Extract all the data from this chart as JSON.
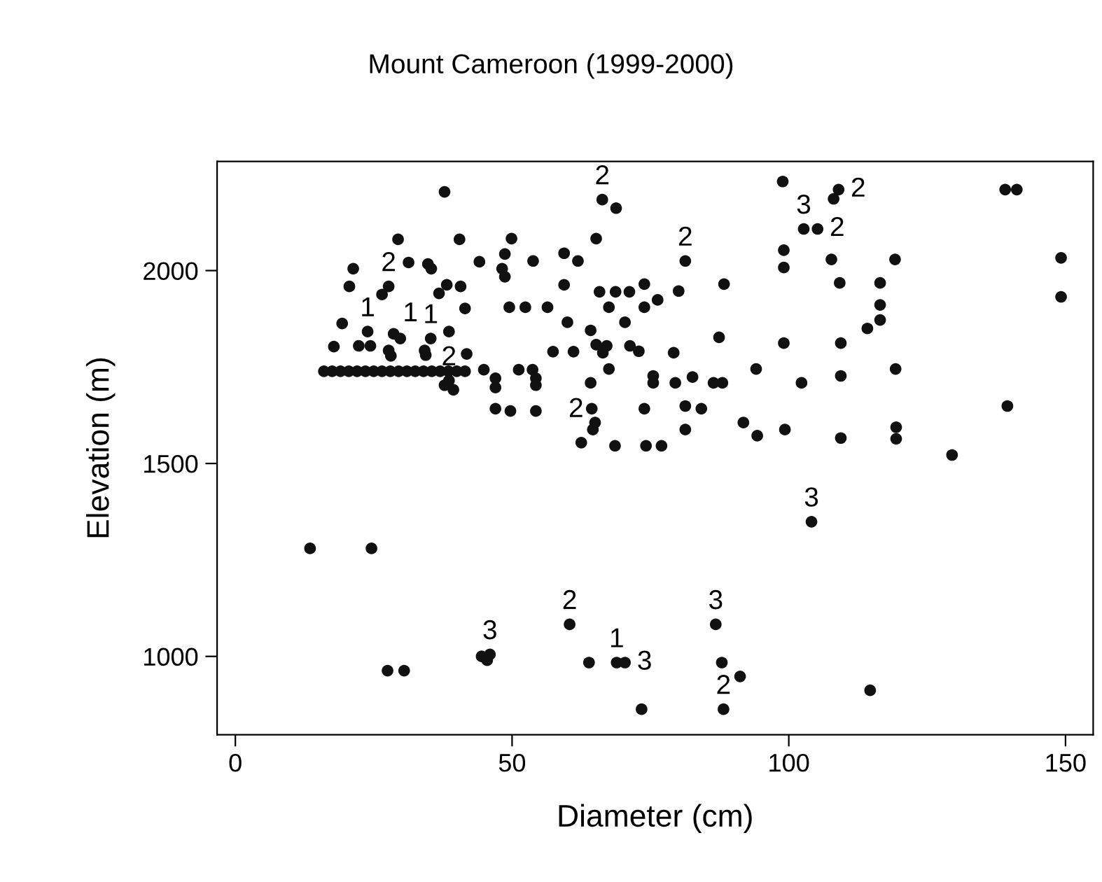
{
  "chart_data": {
    "type": "scatter",
    "title": "Mount Cameroon (1999-2000)",
    "xlabel": "Diameter (cm)",
    "ylabel": "Elevation (m)",
    "xlim": [
      -3.3,
      155
    ],
    "ylim": [
      797,
      2283
    ],
    "xticks": [
      0,
      50,
      100,
      150
    ],
    "yticks": [
      1000,
      1500,
      2000
    ],
    "grid": false,
    "marker": "circle",
    "series": [
      {
        "color": "#111111",
        "x": [
          13.5,
          24.6,
          27.5,
          30.5,
          44.5,
          45.5,
          46,
          60.4,
          63.9,
          68.9,
          70.4,
          73.4,
          86.8,
          87.9,
          91.2,
          88.2,
          62.5,
          68.6,
          74.2,
          77.0,
          104.1,
          114.7,
          129.5,
          109.4,
          109,
          108.1,
          102.7,
          105.2,
          107.7,
          119.2,
          109.2,
          116.5,
          116.5,
          116.5,
          114.2,
          109.4,
          119.3,
          109.4,
          102.3,
          119.4,
          119.4,
          139.1,
          141.2,
          149.2,
          149.2,
          139.5,
          66.3,
          68.8,
          65.2,
          81.3,
          98.9,
          99.1,
          99.1,
          49.9,
          48.7,
          48.2,
          48.7,
          53.8,
          59.4,
          61.9,
          59.4,
          80.1,
          88.3,
          49.5,
          52.4,
          56.4,
          65.8,
          68.7,
          71.2,
          73.9,
          67.5,
          73.9,
          76.3,
          60,
          70.4,
          64.2,
          87.4,
          99.1,
          57.4,
          61.1,
          65.2,
          67.1,
          66.4,
          71.3,
          72.9,
          79.2,
          67.5,
          94.1,
          47,
          47,
          51.2,
          53.7,
          54.3,
          54.3,
          64.2,
          75.5,
          75.5,
          79.5,
          82.6,
          86.4,
          88.0,
          47,
          49.7,
          54.3,
          64.4,
          65,
          64.6,
          73.9,
          81.3,
          84.2,
          81.3,
          91.8,
          94.3,
          99.3,
          37.8,
          29.4,
          31.3,
          34.8,
          35.4,
          40.5,
          44.1,
          21.3,
          20.6,
          26.5,
          27.7,
          36.8,
          38.2,
          40.7,
          41.5,
          19.3,
          23.9,
          28.6,
          29.8,
          35.3,
          38.6,
          17.8,
          22.3,
          24.4,
          27.7,
          28.1,
          34.2,
          34.4,
          41.8,
          16,
          17.5,
          19,
          20.5,
          22,
          23.5,
          25,
          26.5,
          28,
          29.5,
          31,
          32.5,
          34,
          35.5,
          37,
          38.5,
          40,
          41.5,
          44.9,
          37.8,
          39.4,
          38.6
        ],
        "values": [
          1280,
          1280,
          963,
          963,
          1000,
          990,
          1005,
          1083,
          984,
          984,
          984,
          863,
          1083,
          984,
          948,
          863,
          1554,
          1546,
          1546,
          1546,
          1349,
          912,
          1522,
          1566,
          2210,
          2186,
          2108,
          2108,
          2029,
          2029,
          1968,
          1968,
          1911,
          1872,
          1850,
          1812,
          1745,
          1727,
          1709,
          1594,
          1564,
          2210,
          2210,
          2033,
          1932,
          1649,
          2184,
          2162,
          2083,
          2025,
          2231,
          2053,
          2008,
          2083,
          2043,
          2005,
          1984,
          2025,
          2045,
          2025,
          1963,
          1947,
          1965,
          1905,
          1905,
          1905,
          1945,
          1945,
          1945,
          1965,
          1905,
          1905,
          1924,
          1866,
          1866,
          1845,
          1827,
          1812,
          1790,
          1790,
          1808,
          1805,
          1787,
          1805,
          1791,
          1787,
          1745,
          1745,
          1721,
          1697,
          1743,
          1743,
          1721,
          1703,
          1709,
          1727,
          1709,
          1709,
          1724,
          1709,
          1709,
          1642,
          1636,
          1636,
          1642,
          1606,
          1588,
          1642,
          1649,
          1642,
          1588,
          1606,
          1572,
          1588,
          2204,
          2081,
          2021,
          2017,
          2005,
          2081,
          2023,
          2005,
          1959,
          1938,
          1959,
          1941,
          1963,
          1959,
          1902,
          1863,
          1842,
          1836,
          1824,
          1824,
          1842,
          1803,
          1805,
          1805,
          1793,
          1779,
          1793,
          1781,
          1784,
          1739,
          1739,
          1739,
          1739,
          1739,
          1739,
          1739,
          1739,
          1739,
          1739,
          1739,
          1739,
          1739,
          1739,
          1739,
          1739,
          1739,
          1739,
          1743,
          1703,
          1691,
          1715
        ]
      }
    ],
    "annotations": [
      {
        "text": "3",
        "x": 46,
        "y": 1005
      },
      {
        "text": "2",
        "x": 60.4,
        "y": 1083
      },
      {
        "text": "1",
        "x": 68.9,
        "y": 984
      },
      {
        "text": "3",
        "x": 70.4,
        "y": 984
      },
      {
        "text": "3",
        "x": 86.8,
        "y": 1083
      },
      {
        "text": "2",
        "x": 88.2,
        "y": 863
      },
      {
        "text": "3",
        "x": 104.1,
        "y": 1349
      },
      {
        "text": "2",
        "x": 109,
        "y": 2210
      },
      {
        "text": "3",
        "x": 102.7,
        "y": 2108
      },
      {
        "text": "2",
        "x": 105.2,
        "y": 2108
      },
      {
        "text": "2",
        "x": 66.3,
        "y": 2184
      },
      {
        "text": "2",
        "x": 81.3,
        "y": 2025
      },
      {
        "text": "2",
        "x": 64.6,
        "y": 1588
      },
      {
        "text": "2",
        "x": 27.7,
        "y": 1959
      },
      {
        "text": "1",
        "x": 23.9,
        "y": 1842
      },
      {
        "text": "1",
        "x": 28.6,
        "y": 1836
      },
      {
        "text": "1",
        "x": 35.3,
        "y": 1824
      },
      {
        "text": "2",
        "x": 38.6,
        "y": 1715
      }
    ]
  }
}
